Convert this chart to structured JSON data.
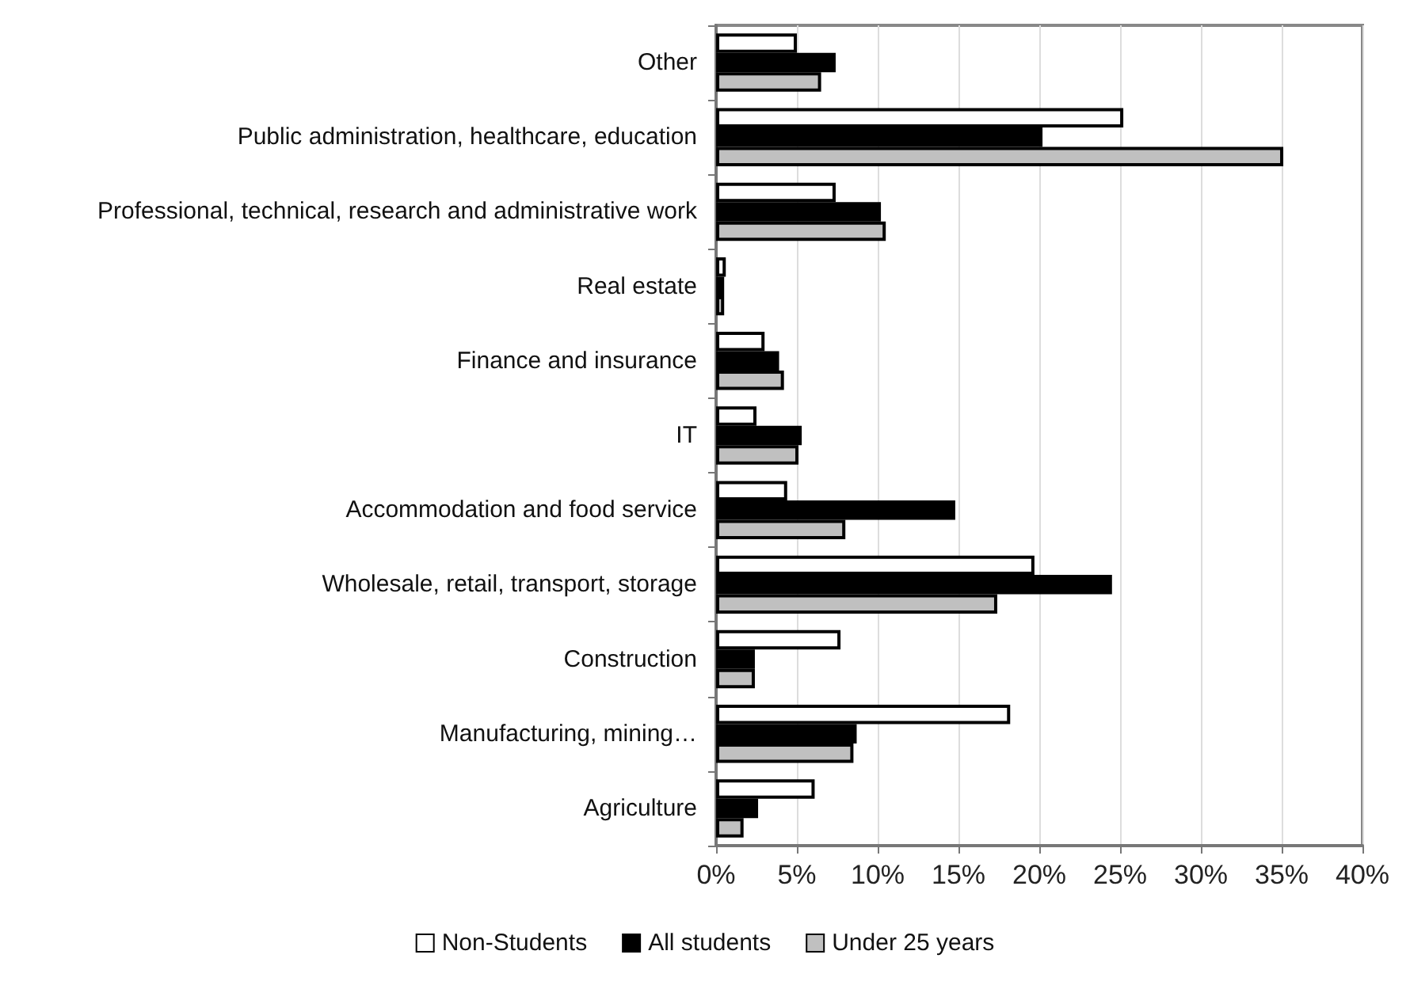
{
  "chart_data": {
    "type": "bar",
    "orientation": "horizontal",
    "categories": [
      "Other",
      "Public administration, healthcare, education",
      "Professional, technical, research and administrative work",
      "Real estate",
      "Finance and insurance",
      "IT",
      "Accommodation and food service",
      "Wholesale, retail, transport, storage",
      "Construction",
      "Manufacturing, mining…",
      "Agriculture"
    ],
    "series": [
      {
        "name": "Non-Students",
        "color": "#ffffff",
        "values": [
          5.0,
          25.2,
          7.4,
          0.6,
          3.0,
          2.5,
          4.4,
          19.7,
          7.7,
          18.2,
          6.1
        ]
      },
      {
        "name": "All students",
        "color": "#000000",
        "values": [
          7.4,
          20.2,
          10.2,
          0.5,
          3.9,
          5.3,
          14.8,
          24.5,
          2.4,
          8.7,
          2.6
        ]
      },
      {
        "name": "Under 25 years",
        "color": "#c0c0c0",
        "values": [
          6.5,
          35.1,
          10.5,
          0.5,
          4.2,
          5.1,
          8.0,
          17.4,
          2.4,
          8.5,
          1.7
        ]
      }
    ],
    "xlim": [
      0,
      40
    ],
    "xticks": [
      {
        "value": 0,
        "label": "0%"
      },
      {
        "value": 5,
        "label": "5%"
      },
      {
        "value": 10,
        "label": "10%"
      },
      {
        "value": 15,
        "label": "15%"
      },
      {
        "value": 20,
        "label": "20%"
      },
      {
        "value": 25,
        "label": "25%"
      },
      {
        "value": 30,
        "label": "30%"
      },
      {
        "value": 35,
        "label": "35%"
      },
      {
        "value": 40,
        "label": "40%"
      }
    ],
    "grid": "x",
    "legend": "bottom"
  }
}
